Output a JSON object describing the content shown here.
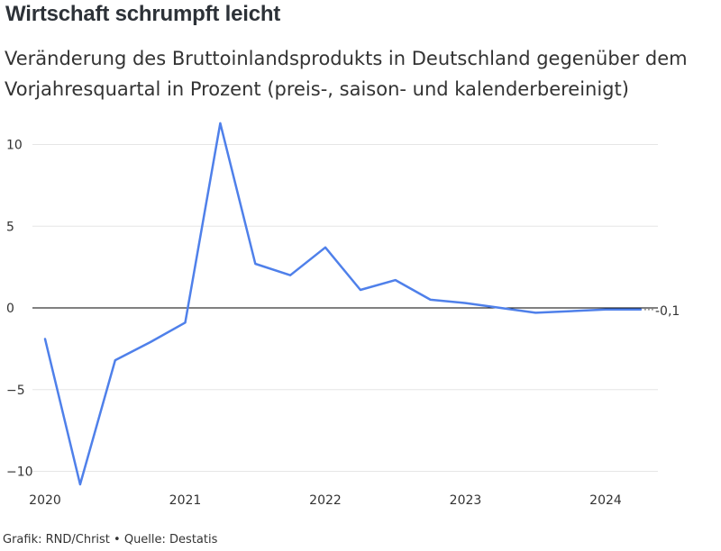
{
  "title": "Wirtschaft schrumpft leicht",
  "subtitle": "Veränderung des Bruttoinlandsprodukts in Deutschland gegenüber dem Vorjahresquartal in Prozent (preis-, saison- und kalenderbereinigt)",
  "footer": "Grafik: RND/Christ • Quelle: Destatis",
  "colors": {
    "line": "#4f80ea",
    "zero_line": "#000000",
    "grid": "#e6e6e6",
    "text": "#333333"
  },
  "chart_data": {
    "type": "line",
    "title": "Wirtschaft schrumpft leicht",
    "xlabel": "",
    "ylabel": "",
    "x_ticks": [
      "2020",
      "2021",
      "2022",
      "2023",
      "2024"
    ],
    "y_ticks": [
      "10",
      "5",
      "0",
      "−5",
      "−10"
    ],
    "ylim": [
      -10.5,
      11.5
    ],
    "xlim": [
      2020,
      2024.5
    ],
    "grid": true,
    "end_label": "-0,1",
    "series": [
      {
        "x": [
          2020.0,
          2020.25,
          2020.5,
          2020.75,
          2021.0,
          2021.25,
          2021.5,
          2021.75,
          2022.0,
          2022.25,
          2022.5,
          2022.75,
          2023.0,
          2023.25,
          2023.5,
          2023.75,
          2024.0,
          2024.25
        ],
        "values": [
          -1.9,
          -10.8,
          -3.2,
          -2.1,
          -0.9,
          11.3,
          2.7,
          2.0,
          3.7,
          1.1,
          1.7,
          0.5,
          0.3,
          0.0,
          -0.3,
          -0.2,
          -0.1,
          -0.1
        ]
      }
    ]
  }
}
